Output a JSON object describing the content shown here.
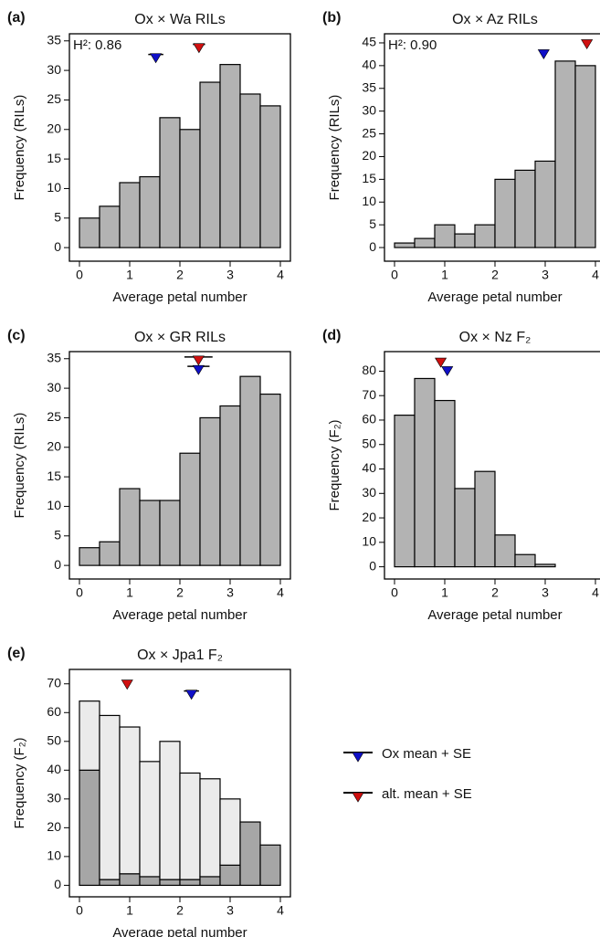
{
  "chart_data": [
    {
      "type": "histogram",
      "panel_label": "(a)",
      "title": "Ox × Wa RILs",
      "xlabel": "Average petal number",
      "ylabel": "Frequency (RILs)",
      "annotation": "H²: 0.86",
      "bins": [
        0,
        0.4,
        0.8,
        1.2,
        1.6,
        2.0,
        2.4,
        2.8,
        3.2,
        3.6,
        4.0
      ],
      "series": [
        {
          "color": "#b3b3b3",
          "values": [
            5,
            7,
            11,
            12,
            22,
            20,
            28,
            31,
            26,
            24
          ]
        }
      ],
      "xlim": [
        -0.2,
        4.2
      ],
      "xticks": [
        0,
        1,
        2,
        3,
        4
      ],
      "ylim": [
        -2.3,
        36.2
      ],
      "yticks": [
        0,
        5,
        10,
        15,
        20,
        25,
        30,
        35
      ],
      "markers": [
        {
          "x": 1.52,
          "se": 0.15,
          "y": 32.7,
          "color": "#1010c8"
        },
        {
          "x": 2.38,
          "se": 0.12,
          "y": 34.4,
          "color": "#d01010"
        }
      ]
    },
    {
      "type": "histogram",
      "panel_label": "(b)",
      "title": "Ox × Az RILs",
      "xlabel": "Average petal number",
      "ylabel": "Frequency (RILs)",
      "annotation": "H²: 0.90",
      "bins": [
        0,
        0.4,
        0.8,
        1.2,
        1.6,
        2.0,
        2.4,
        2.8,
        3.2,
        3.6,
        4.0
      ],
      "series": [
        {
          "color": "#b3b3b3",
          "values": [
            1,
            2,
            5,
            3,
            5,
            15,
            17,
            19,
            41,
            40
          ]
        }
      ],
      "xlim": [
        -0.2,
        4.2
      ],
      "xticks": [
        0,
        1,
        2,
        3,
        4
      ],
      "ylim": [
        -3,
        47
      ],
      "yticks": [
        0,
        5,
        10,
        15,
        20,
        25,
        30,
        35,
        40,
        45
      ],
      "markers": [
        {
          "x": 2.97,
          "se": 0.05,
          "y": 43.3,
          "color": "#1010c8"
        },
        {
          "x": 3.83,
          "se": 0.04,
          "y": 45.5,
          "color": "#d01010"
        }
      ]
    },
    {
      "type": "histogram",
      "panel_label": "(c)",
      "title": "Ox × GR RILs",
      "xlabel": "Average petal number",
      "ylabel": "Frequency (RILs)",
      "bins": [
        0,
        0.4,
        0.8,
        1.2,
        1.6,
        2.0,
        2.4,
        2.8,
        3.2,
        3.6,
        4.0
      ],
      "series": [
        {
          "color": "#b3b3b3",
          "values": [
            3,
            4,
            13,
            11,
            11,
            19,
            25,
            27,
            32,
            29
          ]
        }
      ],
      "xlim": [
        -0.2,
        4.2
      ],
      "xticks": [
        0,
        1,
        2,
        3,
        4
      ],
      "ylim": [
        -2.3,
        36.2
      ],
      "yticks": [
        0,
        5,
        10,
        15,
        20,
        25,
        30,
        35
      ],
      "markers": [
        {
          "x": 2.37,
          "se": 0.22,
          "y": 33.7,
          "color": "#1010c8"
        },
        {
          "x": 2.37,
          "se": 0.28,
          "y": 35.3,
          "color": "#d01010"
        }
      ]
    },
    {
      "type": "histogram",
      "panel_label": "(d)",
      "title": "Ox × Nz F₂",
      "xlabel": "Average petal number",
      "ylabel": "Frequency (F₂)",
      "bins": [
        0,
        0.4,
        0.8,
        1.2,
        1.6,
        2.0,
        2.4,
        2.8,
        3.2,
        3.6,
        4.0
      ],
      "series": [
        {
          "color": "#b3b3b3",
          "values": [
            62,
            77,
            68,
            32,
            39,
            13,
            5,
            1,
            0,
            0
          ]
        }
      ],
      "xlim": [
        -0.2,
        4.2
      ],
      "xticks": [
        0,
        1,
        2,
        3,
        4
      ],
      "ylim": [
        -5,
        88
      ],
      "yticks": [
        0,
        10,
        20,
        30,
        40,
        50,
        60,
        70,
        80
      ],
      "markers": [
        {
          "x": 1.05,
          "se": 0.07,
          "y": 81.5,
          "color": "#1010c8"
        },
        {
          "x": 0.92,
          "se": 0.1,
          "y": 85,
          "color": "#d01010"
        }
      ]
    },
    {
      "type": "histogram",
      "panel_label": "(e)",
      "title": "Ox × Jpa1 F₂",
      "xlabel": "Average petal number",
      "ylabel": "Frequency (F₂)",
      "bins": [
        0,
        0.4,
        0.8,
        1.2,
        1.6,
        2.0,
        2.4,
        2.8,
        3.2,
        3.6,
        4.0
      ],
      "series": [
        {
          "color": "#a6a6a6",
          "values": [
            40,
            2,
            4,
            3,
            2,
            2,
            3,
            7,
            22,
            14
          ]
        },
        {
          "color": "#ebebeb",
          "values": [
            24,
            57,
            51,
            40,
            48,
            37,
            34,
            23,
            0,
            0
          ]
        }
      ],
      "xlim": [
        -0.2,
        4.2
      ],
      "xticks": [
        0,
        1,
        2,
        3,
        4
      ],
      "ylim": [
        -4,
        75
      ],
      "yticks": [
        0,
        10,
        20,
        30,
        40,
        50,
        60,
        70
      ],
      "markers": [
        {
          "x": 2.23,
          "se": 0.15,
          "y": 67.5,
          "color": "#1010c8"
        },
        {
          "x": 0.95,
          "se": 0.06,
          "y": 71,
          "color": "#d01010"
        }
      ]
    }
  ],
  "legend": [
    {
      "label": "Ox mean + SE",
      "color": "#1010c8"
    },
    {
      "label": "alt. mean + SE",
      "color": "#d01010"
    }
  ]
}
